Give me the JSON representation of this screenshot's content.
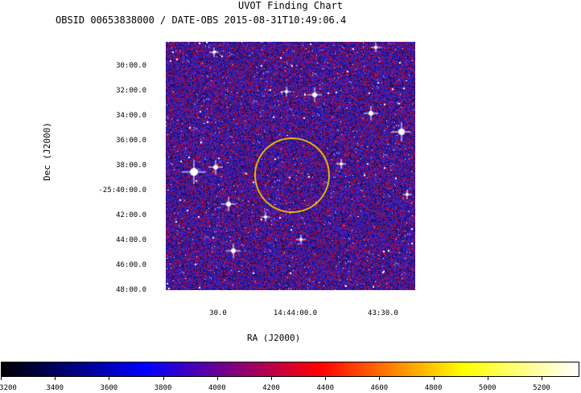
{
  "chart_data": {
    "type": "heatmap",
    "title": "UVOT Finding Chart",
    "subtitle": "OBSID 00653838000 / DATE-OBS 2015-08-31T10:49:06.4",
    "xlabel": "RA (J2000)",
    "ylabel": "Dec (J2000)",
    "x_ticks": [
      "30.0",
      "14:44:00.0",
      "43:30.0"
    ],
    "y_ticks": [
      "30:00.0",
      "32:00.0",
      "34:00.0",
      "36:00.0",
      "38:00.0",
      "-25:40:00.0",
      "42:00.0",
      "44:00.0",
      "46:00.0",
      "48:00.0"
    ],
    "colorbar": {
      "ticks": [
        "3200",
        "3400",
        "3600",
        "3800",
        "4000",
        "4200",
        "4400",
        "4600",
        "4800",
        "5000",
        "5200"
      ],
      "range": [
        3200,
        5340
      ],
      "colormap": [
        "#000000",
        "#0000ff",
        "#ff0000",
        "#ffff00",
        "#ffffff"
      ]
    },
    "source_circle_color": "#e8b000",
    "background_color": "#1a1a8c"
  }
}
